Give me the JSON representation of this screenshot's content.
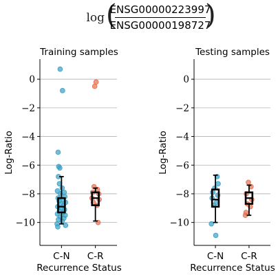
{
  "figure": {
    "title": {
      "prefix": "log",
      "numerator": "ENSG00000223997",
      "denominator": "ENSG00000198727"
    }
  },
  "chart_data": [
    {
      "type": "scatter",
      "title": "Training samples",
      "xlabel": "Recurrence Status",
      "ylabel": "Log-Ratio",
      "categories": [
        "C-N",
        "C-R"
      ],
      "ylim": [
        -11.6,
        1.4
      ],
      "yticks": [
        0,
        -2,
        -4,
        -6,
        -8,
        -10
      ],
      "ytick_labels": [
        "0",
        "−2",
        "−4",
        "−6",
        "−8",
        "−10"
      ],
      "grid": "horizontal",
      "colors": {
        "C-N": "#3a9fc4",
        "C-R": "#e0704f",
        "box": "#000000"
      },
      "series": [
        {
          "name": "C-N",
          "points": [
            {
              "x": -0.04,
              "y": 0.7
            },
            {
              "x": 0.03,
              "y": -0.8
            },
            {
              "x": -0.1,
              "y": -5.1
            },
            {
              "x": -0.08,
              "y": -6.1
            },
            {
              "x": -0.05,
              "y": -6.2
            },
            {
              "x": -0.09,
              "y": -6.8
            },
            {
              "x": -0.06,
              "y": -7.3
            },
            {
              "x": 0.02,
              "y": -7.6
            },
            {
              "x": -0.12,
              "y": -7.8
            },
            {
              "x": 0.08,
              "y": -7.9
            },
            {
              "x": -0.03,
              "y": -8.0
            },
            {
              "x": 0.1,
              "y": -8.2
            },
            {
              "x": -0.1,
              "y": -8.3
            },
            {
              "x": 0.04,
              "y": -8.4
            },
            {
              "x": -0.07,
              "y": -8.5
            },
            {
              "x": 0.12,
              "y": -8.6
            },
            {
              "x": -0.02,
              "y": -8.7
            },
            {
              "x": 0.06,
              "y": -8.8
            },
            {
              "x": -0.11,
              "y": -8.9
            },
            {
              "x": 0.0,
              "y": -9.0
            },
            {
              "x": 0.09,
              "y": -9.1
            },
            {
              "x": -0.06,
              "y": -9.2
            },
            {
              "x": 0.05,
              "y": -9.3
            },
            {
              "x": -0.12,
              "y": -9.4
            },
            {
              "x": 0.11,
              "y": -9.5
            },
            {
              "x": -0.04,
              "y": -9.6
            },
            {
              "x": 0.07,
              "y": -9.7
            },
            {
              "x": -0.09,
              "y": -9.8
            },
            {
              "x": 0.02,
              "y": -9.9
            },
            {
              "x": -0.13,
              "y": -10.1
            },
            {
              "x": 0.12,
              "y": -10.2
            },
            {
              "x": -0.11,
              "y": -10.3
            }
          ]
        },
        {
          "name": "C-R",
          "points": [
            {
              "x": 0.02,
              "y": -0.2
            },
            {
              "x": -0.02,
              "y": -0.5
            },
            {
              "x": -0.04,
              "y": -7.5
            },
            {
              "x": 0.06,
              "y": -7.7
            },
            {
              "x": -0.08,
              "y": -7.9
            },
            {
              "x": 0.1,
              "y": -8.0
            },
            {
              "x": -0.1,
              "y": -8.3
            },
            {
              "x": 0.11,
              "y": -8.4
            },
            {
              "x": -0.06,
              "y": -8.6
            },
            {
              "x": 0.05,
              "y": -8.8
            },
            {
              "x": 0.08,
              "y": -10.0
            }
          ]
        }
      ],
      "boxes": [
        {
          "category": "C-N",
          "whisker_low": -10.1,
          "q1": -9.3,
          "median": -8.9,
          "q3": -8.3,
          "whisker_high": -6.8
        },
        {
          "category": "C-R",
          "whisker_low": -9.9,
          "q1": -8.8,
          "median": -8.3,
          "q3": -7.9,
          "whisker_high": -7.6
        }
      ]
    },
    {
      "type": "scatter",
      "title": "Testing samples",
      "xlabel": "Recurrence Status",
      "ylabel": "Log-Ratio",
      "categories": [
        "C-N",
        "C-R"
      ],
      "ylim": [
        -11.6,
        1.4
      ],
      "yticks": [
        0,
        -2,
        -4,
        -6,
        -8,
        -10
      ],
      "ytick_labels": [
        "0",
        "−2",
        "−4",
        "−6",
        "−8",
        "−10"
      ],
      "grid": "horizontal",
      "colors": {
        "C-N": "#3a9fc4",
        "C-R": "#e0704f",
        "box": "#000000"
      },
      "series": [
        {
          "name": "C-N",
          "points": [
            {
              "x": 0.05,
              "y": -6.8
            },
            {
              "x": 0.08,
              "y": -7.3
            },
            {
              "x": -0.02,
              "y": -7.6
            },
            {
              "x": -0.08,
              "y": -7.9
            },
            {
              "x": 0.07,
              "y": -8.1
            },
            {
              "x": -0.1,
              "y": -8.3
            },
            {
              "x": 0.03,
              "y": -8.6
            },
            {
              "x": -0.05,
              "y": -8.8
            },
            {
              "x": -0.12,
              "y": -10.1
            },
            {
              "x": 0.01,
              "y": -10.9
            }
          ]
        },
        {
          "name": "C-R",
          "points": [
            {
              "x": -0.02,
              "y": -7.2
            },
            {
              "x": 0.06,
              "y": -7.5
            },
            {
              "x": -0.08,
              "y": -8.0
            },
            {
              "x": 0.08,
              "y": -8.4
            },
            {
              "x": -0.05,
              "y": -8.7
            },
            {
              "x": 0.04,
              "y": -8.9
            },
            {
              "x": -0.09,
              "y": -9.3
            },
            {
              "x": -0.11,
              "y": -9.5
            }
          ]
        }
      ],
      "boxes": [
        {
          "category": "C-N",
          "whisker_low": -10.0,
          "q1": -8.9,
          "median": -8.4,
          "q3": -7.7,
          "whisker_high": -6.7
        },
        {
          "category": "C-R",
          "whisker_low": -9.5,
          "q1": -8.7,
          "median": -8.3,
          "q3": -7.9,
          "whisker_high": -7.4
        }
      ]
    }
  ]
}
